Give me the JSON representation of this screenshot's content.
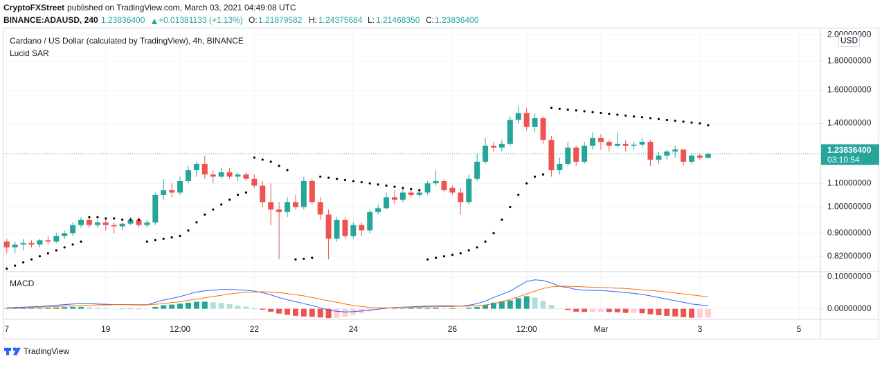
{
  "header": {
    "publisher": "CryptoFXStreet",
    "published": "published on TradingView.com, March 03, 2021 04:49:08 UTC",
    "symbol": "BINANCE:ADAUSD, 240",
    "last": "1.23836400",
    "change": "+0.01381133 (+1.13%)",
    "ohlc": [
      {
        "label": "O:",
        "value": "1.21879582"
      },
      {
        "label": "H:",
        "value": "1.24375684"
      },
      {
        "label": "L:",
        "value": "1.21468350"
      },
      {
        "label": "C:",
        "value": "1.23836400"
      }
    ]
  },
  "chart_data": [
    {
      "type": "candlestick",
      "title": "Cardano / US Dollar (calculated by TradingView), 4h, BINANCE",
      "currency": "USD",
      "log_scale": true,
      "grid": true,
      "up_color": "#26a69a",
      "down_color": "#ef5350",
      "xlim": [
        -0.4,
        98.6
      ],
      "ylim": [
        0.773,
        2.03
      ],
      "yticks": [
        {
          "value": 2,
          "label": "2.00000000"
        },
        {
          "value": 1.8,
          "label": "1.80000000"
        },
        {
          "value": 1.6,
          "label": "1.60000000"
        },
        {
          "value": 1.4,
          "label": "1.40000000"
        },
        {
          "value": 1.1,
          "label": "1.10000000"
        },
        {
          "value": 1,
          "label": "1.00000000"
        },
        {
          "value": 0.9,
          "label": "0.90000000"
        },
        {
          "value": 0.82,
          "label": "0.82000000"
        }
      ],
      "last_price": {
        "value": 1.238364,
        "label": "1.23836400"
      },
      "countdown": "03:10:54",
      "open": [
        0.87,
        0.85,
        0.86,
        0.865,
        0.86,
        0.875,
        0.87,
        0.89,
        0.9,
        0.93,
        0.95,
        0.93,
        0.94,
        0.93,
        0.925,
        0.935,
        0.95,
        0.93,
        0.94,
        1.05,
        1.07,
        1.06,
        1.11,
        1.16,
        1.19,
        1.14,
        1.13,
        1.15,
        1.13,
        1.14,
        1.12,
        1.09,
        1.02,
        0.99,
        0.98,
        1.02,
        1.0,
        1.11,
        1.02,
        0.97,
        0.88,
        0.95,
        0.89,
        0.93,
        0.91,
        0.98,
        0.995,
        1.04,
        1.03,
        1.06,
        1.05,
        1.06,
        1.1,
        1.11,
        1.08,
        1.06,
        1.02,
        1.12,
        1.2,
        1.28,
        1.27,
        1.29,
        1.42,
        1.46,
        1.38,
        1.43,
        1.31,
        1.16,
        1.19,
        1.27,
        1.2,
        1.28,
        1.32,
        1.3,
        1.28,
        1.29,
        1.28,
        1.285,
        1.3,
        1.21,
        1.23,
        1.25,
        1.26,
        1.2,
        1.23,
        1.21879582
      ],
      "high": [
        0.88,
        0.87,
        0.88,
        0.875,
        0.88,
        0.89,
        0.9,
        0.91,
        0.94,
        0.96,
        0.96,
        0.95,
        0.95,
        0.94,
        0.94,
        0.96,
        0.96,
        0.95,
        1.06,
        1.12,
        1.1,
        1.13,
        1.18,
        1.2,
        1.23,
        1.16,
        1.17,
        1.17,
        1.15,
        1.15,
        1.14,
        1.11,
        1.1,
        1.02,
        1.04,
        1.05,
        1.13,
        1.12,
        1.04,
        0.99,
        0.96,
        0.96,
        0.94,
        0.94,
        0.99,
        1.01,
        1.06,
        1.07,
        1.08,
        1.07,
        1.07,
        1.11,
        1.16,
        1.12,
        1.09,
        1.08,
        1.14,
        1.24,
        1.32,
        1.3,
        1.31,
        1.44,
        1.5,
        1.49,
        1.46,
        1.44,
        1.33,
        1.22,
        1.3,
        1.28,
        1.3,
        1.35,
        1.34,
        1.31,
        1.35,
        1.31,
        1.3,
        1.32,
        1.31,
        1.25,
        1.26,
        1.28,
        1.26,
        1.24,
        1.24,
        1.24375684
      ],
      "low": [
        0.83,
        0.83,
        0.84,
        0.85,
        0.85,
        0.86,
        0.865,
        0.88,
        0.89,
        0.92,
        0.92,
        0.92,
        0.91,
        0.9,
        0.91,
        0.93,
        0.92,
        0.92,
        0.93,
        1.03,
        1.04,
        1.05,
        1.1,
        1.13,
        1.12,
        1.1,
        1.12,
        1.12,
        1.11,
        1.11,
        1.08,
        1.0,
        0.93,
        0.81,
        0.96,
        0.99,
        0.99,
        1.01,
        0.95,
        0.81,
        0.87,
        0.88,
        0.88,
        0.89,
        0.9,
        0.97,
        0.99,
        1.01,
        1.02,
        1.04,
        1.04,
        1.05,
        1.09,
        1.06,
        1.05,
        0.97,
        1.01,
        1.11,
        1.19,
        1.25,
        1.25,
        1.28,
        1.4,
        1.36,
        1.35,
        1.29,
        1.13,
        1.14,
        1.18,
        1.18,
        1.19,
        1.26,
        1.26,
        1.25,
        1.27,
        1.25,
        1.26,
        1.27,
        1.18,
        1.19,
        1.21,
        1.22,
        1.18,
        1.19,
        1.21,
        1.2146835
      ],
      "close": [
        0.85,
        0.86,
        0.865,
        0.86,
        0.875,
        0.87,
        0.89,
        0.9,
        0.93,
        0.95,
        0.93,
        0.94,
        0.93,
        0.925,
        0.935,
        0.95,
        0.93,
        0.94,
        1.05,
        1.07,
        1.06,
        1.11,
        1.16,
        1.19,
        1.14,
        1.13,
        1.15,
        1.13,
        1.14,
        1.12,
        1.09,
        1.02,
        0.99,
        0.98,
        1.02,
        1.0,
        1.11,
        1.02,
        0.97,
        0.88,
        0.95,
        0.89,
        0.93,
        0.91,
        0.98,
        0.995,
        1.04,
        1.03,
        1.06,
        1.05,
        1.06,
        1.1,
        1.11,
        1.07,
        1.06,
        1.02,
        1.12,
        1.2,
        1.28,
        1.27,
        1.29,
        1.42,
        1.46,
        1.38,
        1.43,
        1.31,
        1.16,
        1.19,
        1.27,
        1.2,
        1.28,
        1.32,
        1.3,
        1.28,
        1.29,
        1.28,
        1.285,
        1.3,
        1.21,
        1.23,
        1.25,
        1.26,
        1.2,
        1.23,
        1.22,
        1.238364
      ],
      "sar": {
        "name": "Lucid SAR",
        "color": "#000000",
        "values": [
          0.78,
          0.79,
          0.8,
          0.81,
          0.82,
          0.83,
          0.84,
          0.85,
          0.86,
          0.87,
          0.96,
          0.96,
          0.955,
          0.955,
          0.95,
          0.95,
          0.95,
          0.87,
          0.875,
          0.88,
          0.885,
          0.89,
          0.91,
          0.94,
          0.97,
          0.99,
          1.01,
          1.03,
          1.05,
          1.06,
          1.22,
          1.21,
          1.2,
          1.18,
          1.16,
          0.81,
          0.812,
          0.815,
          1.13,
          1.125,
          1.12,
          1.115,
          1.11,
          1.105,
          1.1,
          1.095,
          1.09,
          1.085,
          1.08,
          1.075,
          1.07,
          0.81,
          0.815,
          0.82,
          0.825,
          0.83,
          0.84,
          0.85,
          0.87,
          0.9,
          0.95,
          1.0,
          1.05,
          1.1,
          1.13,
          1.14,
          1.49,
          1.485,
          1.48,
          1.475,
          1.47,
          1.465,
          1.46,
          1.455,
          1.45,
          1.445,
          1.44,
          1.435,
          1.43,
          1.425,
          1.42,
          1.415,
          1.41,
          1.405,
          1.4,
          1.39
        ]
      }
    },
    {
      "type": "macd",
      "title": "MACD",
      "grid": true,
      "xlim": [
        -0.4,
        98.6
      ],
      "ylim": [
        -0.033,
        0.111
      ],
      "yticks": [
        {
          "value": 0.1,
          "label": "0.10000000"
        },
        {
          "value": 0,
          "label": "0.00000000"
        }
      ],
      "xticks": [
        {
          "value": 0,
          "label": "7"
        },
        {
          "value": 12,
          "label": "19"
        },
        {
          "value": 21,
          "label": "12:00"
        },
        {
          "value": 30,
          "label": "22"
        },
        {
          "value": 42,
          "label": "24"
        },
        {
          "value": 54,
          "label": "26"
        },
        {
          "value": 63,
          "label": "12:00"
        },
        {
          "value": 72,
          "label": "Mar"
        },
        {
          "value": 84,
          "label": "3"
        },
        {
          "value": 96,
          "label": "5"
        }
      ],
      "histogram": {
        "up_strong": "#26a69a",
        "up_weak": "#b2dfdb",
        "down_strong": "#ef5350",
        "down_weak": "#ffcdd2",
        "values": [
          0.001,
          0.002,
          0.002,
          0.002,
          0.002,
          0.003,
          0.004,
          0.005,
          0.006,
          0.006,
          0.005,
          0.003,
          0.002,
          0,
          0,
          0,
          -0.001,
          -0.001,
          0.006,
          0.011,
          0.013,
          0.016,
          0.019,
          0.022,
          0.022,
          0.02,
          0.018,
          0.014,
          0.01,
          0.007,
          0.003,
          -0.003,
          -0.009,
          -0.015,
          -0.019,
          -0.022,
          -0.024,
          -0.025,
          -0.027,
          -0.029,
          -0.028,
          -0.025,
          -0.019,
          -0.014,
          -0.008,
          -0.004,
          -0.001,
          0.001,
          0.001,
          0.002,
          0.002,
          0.002,
          0.003,
          0.002,
          0.002,
          0,
          0.003,
          0.006,
          0.012,
          0.019,
          0.023,
          0.026,
          0.033,
          0.039,
          0.035,
          0.025,
          0.012,
          0,
          -0.004,
          -0.009,
          -0.01,
          -0.01,
          -0.009,
          -0.01,
          -0.011,
          -0.013,
          -0.013,
          -0.014,
          -0.017,
          -0.02,
          -0.022,
          -0.024,
          -0.026,
          -0.028,
          -0.028,
          -0.027
        ]
      },
      "macd": {
        "color": "#2962ff",
        "values": [
          0.003,
          0.004,
          0.005,
          0.006,
          0.007,
          0.009,
          0.011,
          0.013,
          0.015,
          0.016,
          0.016,
          0.015,
          0.014,
          0.013,
          0.013,
          0.013,
          0.012,
          0.012,
          0.02,
          0.027,
          0.032,
          0.038,
          0.045,
          0.052,
          0.056,
          0.058,
          0.06,
          0.06,
          0.059,
          0.058,
          0.055,
          0.05,
          0.043,
          0.035,
          0.028,
          0.022,
          0.016,
          0.01,
          0.003,
          -0.004,
          -0.008,
          -0.01,
          -0.009,
          -0.007,
          -0.004,
          -0.001,
          0.002,
          0.004,
          0.005,
          0.006,
          0.007,
          0.008,
          0.009,
          0.009,
          0.009,
          0.008,
          0.011,
          0.016,
          0.024,
          0.035,
          0.045,
          0.055,
          0.07,
          0.085,
          0.09,
          0.088,
          0.08,
          0.07,
          0.066,
          0.06,
          0.058,
          0.057,
          0.057,
          0.055,
          0.053,
          0.05,
          0.048,
          0.045,
          0.04,
          0.035,
          0.03,
          0.025,
          0.02,
          0.015,
          0.012,
          0.01
        ]
      },
      "signal": {
        "color": "#ff6d00",
        "values": [
          0.002,
          0.002,
          0.003,
          0.004,
          0.005,
          0.006,
          0.007,
          0.008,
          0.009,
          0.01,
          0.011,
          0.012,
          0.012,
          0.013,
          0.013,
          0.013,
          0.013,
          0.013,
          0.014,
          0.016,
          0.019,
          0.022,
          0.026,
          0.03,
          0.034,
          0.038,
          0.042,
          0.046,
          0.049,
          0.051,
          0.052,
          0.053,
          0.052,
          0.05,
          0.047,
          0.044,
          0.04,
          0.035,
          0.03,
          0.025,
          0.02,
          0.015,
          0.01,
          0.007,
          0.004,
          0.003,
          0.003,
          0.003,
          0.004,
          0.004,
          0.005,
          0.006,
          0.006,
          0.007,
          0.007,
          0.008,
          0.008,
          0.01,
          0.012,
          0.016,
          0.022,
          0.029,
          0.037,
          0.046,
          0.055,
          0.063,
          0.068,
          0.07,
          0.07,
          0.069,
          0.068,
          0.067,
          0.066,
          0.065,
          0.064,
          0.063,
          0.061,
          0.059,
          0.057,
          0.055,
          0.052,
          0.049,
          0.046,
          0.043,
          0.04,
          0.037
        ]
      }
    }
  ],
  "footer": {
    "brand": "TradingView"
  }
}
